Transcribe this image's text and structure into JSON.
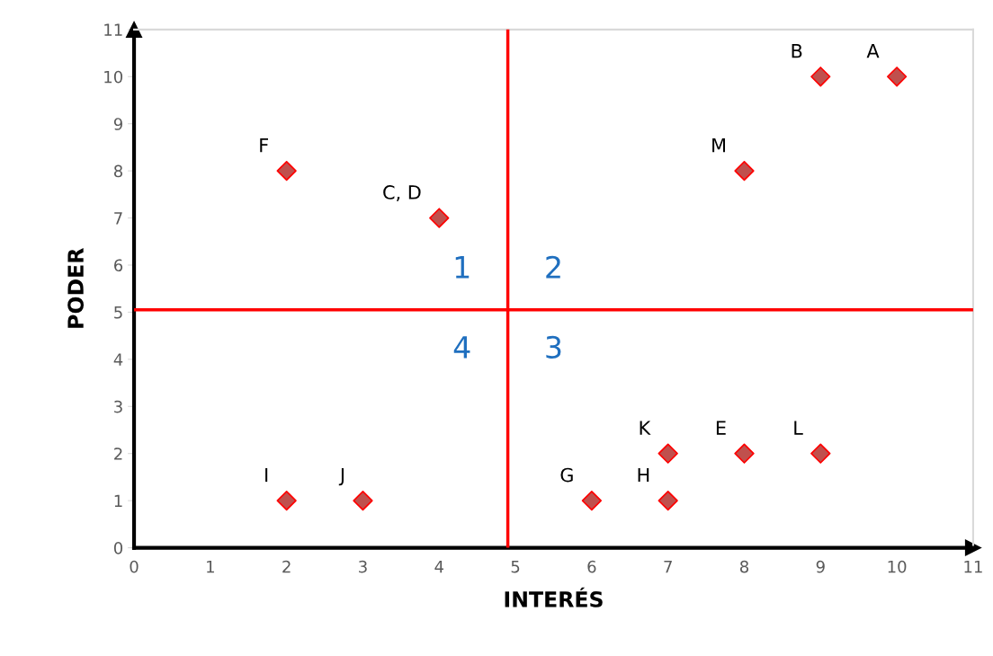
{
  "chart_data": {
    "type": "scatter",
    "xlabel": "INTERÉS",
    "ylabel": "PODER",
    "x": [
      10,
      9,
      4,
      8,
      2,
      6,
      7,
      2,
      3,
      7,
      9,
      8
    ],
    "values": [
      10,
      10,
      7,
      2,
      8,
      1,
      1,
      1,
      1,
      2,
      2,
      8
    ],
    "color": "#c0504d",
    "marker": "diamond",
    "xlim": [
      0,
      11
    ],
    "ylim": [
      0,
      11
    ],
    "xticks": [
      0,
      1,
      2,
      3,
      4,
      5,
      6,
      7,
      8,
      9,
      10,
      11
    ],
    "yticks": [
      0,
      1,
      2,
      3,
      4,
      5,
      6,
      7,
      8,
      9,
      10,
      11
    ],
    "grid": false,
    "ref_lines": [
      {
        "axis": "x",
        "value": 4.9,
        "color": "#ff0000"
      },
      {
        "axis": "y",
        "value": 5.05,
        "color": "#ff0000"
      }
    ],
    "annotations": [
      {
        "text": "A",
        "x": 10,
        "y": 10
      },
      {
        "text": "B",
        "x": 9,
        "y": 10
      },
      {
        "text": "C, D",
        "x": 4,
        "y": 7
      },
      {
        "text": "E",
        "x": 8,
        "y": 2
      },
      {
        "text": "F",
        "x": 2,
        "y": 8
      },
      {
        "text": "G",
        "x": 6,
        "y": 1
      },
      {
        "text": "H",
        "x": 7,
        "y": 1
      },
      {
        "text": "I",
        "x": 2,
        "y": 1
      },
      {
        "text": "J",
        "x": 3,
        "y": 1
      },
      {
        "text": "K",
        "x": 7,
        "y": 2
      },
      {
        "text": "L",
        "x": 9,
        "y": 2
      },
      {
        "text": "M",
        "x": 8,
        "y": 8
      },
      "1",
      "2",
      "3",
      "4"
    ]
  }
}
